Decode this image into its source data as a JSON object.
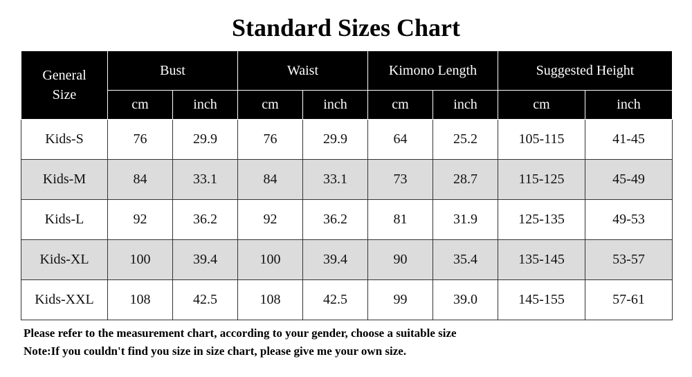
{
  "title": "Standard Sizes Chart",
  "table": {
    "corner": "General Size",
    "groups": [
      "Bust",
      "Waist",
      "Kimono Length",
      "Suggested Height"
    ],
    "units": [
      "cm",
      "inch",
      "cm",
      "inch",
      "cm",
      "inch",
      "cm",
      "inch"
    ],
    "rows": [
      [
        "Kids-S",
        "76",
        "29.9",
        "76",
        "29.9",
        "64",
        "25.2",
        "105-115",
        "41-45"
      ],
      [
        "Kids-M",
        "84",
        "33.1",
        "84",
        "33.1",
        "73",
        "28.7",
        "115-125",
        "45-49"
      ],
      [
        "Kids-L",
        "92",
        "36.2",
        "92",
        "36.2",
        "81",
        "31.9",
        "125-135",
        "49-53"
      ],
      [
        "Kids-XL",
        "100",
        "39.4",
        "100",
        "39.4",
        "90",
        "35.4",
        "135-145",
        "53-57"
      ],
      [
        "Kids-XXL",
        "108",
        "42.5",
        "108",
        "42.5",
        "99",
        "39.0",
        "145-155",
        "57-61"
      ]
    ]
  },
  "notes": [
    "Please refer to the measurement chart, according to your gender, choose a suitable size",
    "Note:If you couldn't find you size in size chart, please give me your own size."
  ]
}
